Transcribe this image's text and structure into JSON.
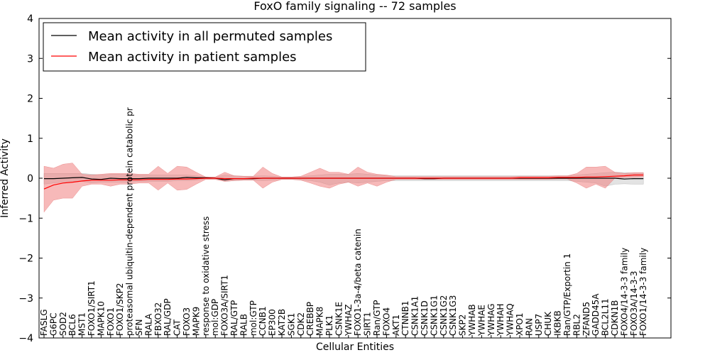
{
  "chart_data": {
    "type": "line",
    "title": "FoxO family signaling -- 72 samples",
    "xlabel": "Cellular Entities",
    "ylabel": "Inferred Activity",
    "ylim": [
      -4,
      4
    ],
    "yticks": [
      -4,
      -3,
      -2,
      -1,
      0,
      1,
      2,
      3,
      4
    ],
    "ytick_labels": [
      "−4",
      "−3",
      "−2",
      "−1",
      "0",
      "1",
      "2",
      "3",
      "4"
    ],
    "legend_position": "top-left",
    "categories": [
      "FASLG",
      "G6PC",
      "SOD2",
      "BCL6",
      "MST1",
      "FOXO1/SIRT1",
      "MAPK10",
      "FOXO1",
      "FOXO1/SKP2",
      "proteasomal ubiquitin-dependent protein catabolic pr",
      "SFN",
      "RALA",
      "FBXO32",
      "RAL/GDP",
      "CAT",
      "FOXO3",
      "MAPK9",
      "response to oxidative stress",
      "mol:GDP",
      "FOXO3A/SIRT1",
      "RAL/GTP",
      "RALB",
      "mol:GTP",
      "CCNB1",
      "EP300",
      "KAT2B",
      "SGK1",
      "CDK2",
      "CREBBP",
      "MAPK8",
      "PLK1",
      "CSNK1E",
      "YWHAZ",
      "FOXO1-3a-4/beta catenin",
      "SIRT1",
      "Ran/GTP",
      "FOXO4",
      "AKT1",
      "CTNNB1",
      "CSNK1A1",
      "CSNK1D",
      "CSNK1G1",
      "CSNK1G2",
      "CSNK1G3",
      "SKP2",
      "YWHAB",
      "YWHAE",
      "YWHAG",
      "YWHAH",
      "YWHAQ",
      "XPO1",
      "RAN",
      "USP7",
      "CHUK",
      "IKBKB",
      "Ran/GTP/Exportin 1",
      "RBL2",
      "ZFAND5",
      "GADD45A",
      "BCL2L11",
      "CDKN1B",
      "FOXO4/14-3-3 family",
      "FOXO3A/14-3-3",
      "FOXO1/14-3-3 family"
    ],
    "series": [
      {
        "name": "Mean activity in all permuted samples",
        "color": "#000000",
        "values": [
          -0.01,
          -0.01,
          0.0,
          0.01,
          0.02,
          -0.02,
          -0.03,
          0.0,
          -0.01,
          -0.01,
          -0.01,
          0.0,
          0.0,
          0.0,
          0.0,
          0.02,
          0.01,
          0.01,
          0.0,
          -0.04,
          -0.01,
          -0.01,
          -0.01,
          0.0,
          0.0,
          0.0,
          0.0,
          0.0,
          0.0,
          0.0,
          0.0,
          0.0,
          0.0,
          0.0,
          0.0,
          0.0,
          0.0,
          0.0,
          0.0,
          0.0,
          -0.01,
          -0.01,
          0.0,
          0.0,
          0.0,
          0.0,
          0.0,
          0.0,
          0.0,
          0.0,
          0.0,
          0.0,
          0.0,
          0.0,
          0.0,
          0.0,
          0.0,
          0.0,
          0.0,
          0.0,
          0.0,
          -0.02,
          -0.01,
          -0.01
        ],
        "lower": [
          -0.15,
          -0.12,
          -0.1,
          -0.08,
          -0.08,
          -0.12,
          -0.1,
          -0.1,
          -0.1,
          -0.1,
          -0.08,
          -0.08,
          -0.08,
          -0.08,
          -0.06,
          -0.06,
          -0.05,
          -0.02,
          -0.02,
          -0.08,
          -0.06,
          -0.05,
          -0.05,
          -0.06,
          -0.05,
          -0.03,
          -0.03,
          -0.04,
          -0.06,
          -0.1,
          -0.17,
          -0.12,
          -0.1,
          -0.12,
          -0.1,
          -0.08,
          -0.06,
          -0.06,
          -0.06,
          -0.06,
          -0.06,
          -0.06,
          -0.06,
          -0.06,
          -0.06,
          -0.06,
          -0.06,
          -0.06,
          -0.06,
          -0.06,
          -0.06,
          -0.06,
          -0.06,
          -0.06,
          -0.06,
          -0.06,
          -0.08,
          -0.1,
          -0.12,
          -0.2,
          -0.15,
          -0.14,
          -0.15,
          -0.15
        ],
        "upper": [
          0.12,
          0.12,
          0.12,
          0.12,
          0.12,
          0.1,
          0.08,
          0.1,
          0.1,
          0.1,
          0.08,
          0.08,
          0.08,
          0.08,
          0.08,
          0.08,
          0.06,
          0.03,
          0.03,
          0.08,
          0.06,
          0.05,
          0.05,
          0.06,
          0.05,
          0.03,
          0.03,
          0.04,
          0.06,
          0.08,
          0.1,
          0.1,
          0.1,
          0.12,
          0.1,
          0.08,
          0.06,
          0.06,
          0.06,
          0.06,
          0.06,
          0.06,
          0.06,
          0.06,
          0.06,
          0.06,
          0.06,
          0.06,
          0.06,
          0.06,
          0.06,
          0.06,
          0.06,
          0.06,
          0.06,
          0.06,
          0.08,
          0.1,
          0.12,
          0.14,
          0.15,
          0.14,
          0.13,
          0.13
        ]
      },
      {
        "name": "Mean activity in patient samples",
        "color": "#ff0000",
        "values": [
          -0.27,
          -0.17,
          -0.12,
          -0.1,
          -0.07,
          -0.05,
          -0.05,
          -0.05,
          -0.04,
          -0.04,
          -0.04,
          -0.03,
          -0.03,
          -0.03,
          -0.02,
          -0.02,
          -0.01,
          0.0,
          0.0,
          -0.01,
          -0.01,
          -0.01,
          0.0,
          0.0,
          0.0,
          0.0,
          0.0,
          0.0,
          0.0,
          0.0,
          0.0,
          0.0,
          0.0,
          0.0,
          0.0,
          0.0,
          0.0,
          0.0,
          0.0,
          0.0,
          0.0,
          0.0,
          0.0,
          0.0,
          0.0,
          0.0,
          0.0,
          0.0,
          0.0,
          0.0,
          0.01,
          0.01,
          0.01,
          0.01,
          0.02,
          0.02,
          0.02,
          0.03,
          0.03,
          0.04,
          0.05,
          0.06,
          0.08,
          0.08
        ],
        "lower": [
          -0.85,
          -0.55,
          -0.5,
          -0.5,
          -0.2,
          -0.15,
          -0.15,
          -0.2,
          -0.15,
          -0.15,
          -0.12,
          -0.12,
          -0.3,
          -0.12,
          -0.3,
          -0.28,
          -0.15,
          -0.03,
          -0.03,
          -0.08,
          -0.06,
          -0.05,
          -0.05,
          -0.25,
          -0.1,
          -0.03,
          -0.03,
          -0.05,
          -0.12,
          -0.2,
          -0.25,
          -0.15,
          -0.1,
          -0.2,
          -0.12,
          -0.2,
          -0.1,
          -0.03,
          -0.03,
          -0.03,
          -0.03,
          -0.03,
          -0.03,
          -0.03,
          -0.03,
          -0.03,
          -0.03,
          -0.03,
          -0.03,
          -0.03,
          -0.03,
          -0.03,
          -0.03,
          -0.03,
          -0.02,
          -0.02,
          -0.12,
          -0.25,
          -0.15,
          -0.25,
          0.0,
          0.02,
          0.02,
          0.03
        ],
        "upper": [
          0.3,
          0.25,
          0.35,
          0.38,
          0.1,
          0.08,
          0.1,
          0.12,
          0.12,
          0.12,
          0.1,
          0.1,
          0.3,
          0.12,
          0.3,
          0.28,
          0.15,
          0.03,
          0.03,
          0.15,
          0.06,
          0.05,
          0.05,
          0.28,
          0.12,
          0.03,
          0.03,
          0.05,
          0.15,
          0.25,
          0.15,
          0.15,
          0.1,
          0.28,
          0.15,
          0.1,
          0.08,
          0.04,
          0.04,
          0.04,
          0.04,
          0.04,
          0.04,
          0.04,
          0.04,
          0.04,
          0.04,
          0.04,
          0.04,
          0.04,
          0.05,
          0.05,
          0.05,
          0.05,
          0.06,
          0.06,
          0.12,
          0.28,
          0.28,
          0.3,
          0.15,
          0.12,
          0.14,
          0.14
        ]
      }
    ]
  }
}
